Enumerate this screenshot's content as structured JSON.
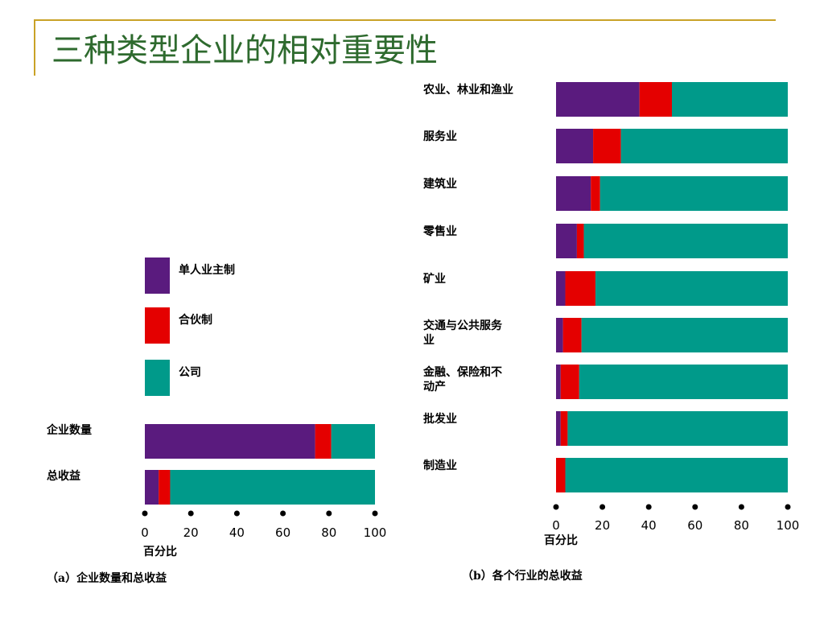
{
  "slide": {
    "title": "三种类型企业的相对重要性"
  },
  "colors": {
    "sole": "#5a1b7e",
    "partner": "#e40000",
    "corp": "#009a8a",
    "rule": "#c9a227",
    "title": "#2e6a2e"
  },
  "legend": {
    "items": [
      "单人业主制",
      "合伙制",
      "公司"
    ]
  },
  "chart_data": [
    {
      "type": "bar",
      "orientation": "horizontal",
      "stacked": true,
      "caption": "（a）企业数量和总收益",
      "xlabel": "百分比",
      "xlim": [
        0,
        100
      ],
      "ticks": [
        "0",
        "20",
        "40",
        "60",
        "80",
        "100"
      ],
      "categories": [
        "企业数量",
        "总收益"
      ],
      "series": [
        {
          "name": "单人业主制",
          "values": [
            74,
            6
          ]
        },
        {
          "name": "合伙制",
          "values": [
            7,
            5
          ]
        },
        {
          "name": "公司",
          "values": [
            19,
            89
          ]
        }
      ]
    },
    {
      "type": "bar",
      "orientation": "horizontal",
      "stacked": true,
      "caption": "（b）各个行业的总收益",
      "xlabel": "百分比",
      "xlim": [
        0,
        100
      ],
      "ticks": [
        "0",
        "20",
        "40",
        "60",
        "80",
        "100"
      ],
      "categories": [
        "农业、林业和渔业",
        "服务业",
        "建筑业",
        "零售业",
        "矿业",
        "交通与公共服务业",
        "金融、保险和不动产",
        "批发业",
        "制造业"
      ],
      "category_lines": [
        [
          "农业、林业和渔业"
        ],
        [
          "服务业"
        ],
        [
          "建筑业"
        ],
        [
          "零售业"
        ],
        [
          "矿业"
        ],
        [
          "交通与公共服务",
          "业"
        ],
        [
          "金融、保险和不",
          "动产"
        ],
        [
          "批发业"
        ],
        [
          "制造业"
        ]
      ],
      "series": [
        {
          "name": "单人业主制",
          "values": [
            36,
            16,
            15,
            9,
            4,
            3,
            2,
            2,
            0
          ]
        },
        {
          "name": "合伙制",
          "values": [
            14,
            12,
            4,
            3,
            13,
            8,
            8,
            3,
            4
          ]
        },
        {
          "name": "公司",
          "values": [
            50,
            72,
            81,
            88,
            83,
            89,
            90,
            95,
            96
          ]
        }
      ]
    }
  ]
}
